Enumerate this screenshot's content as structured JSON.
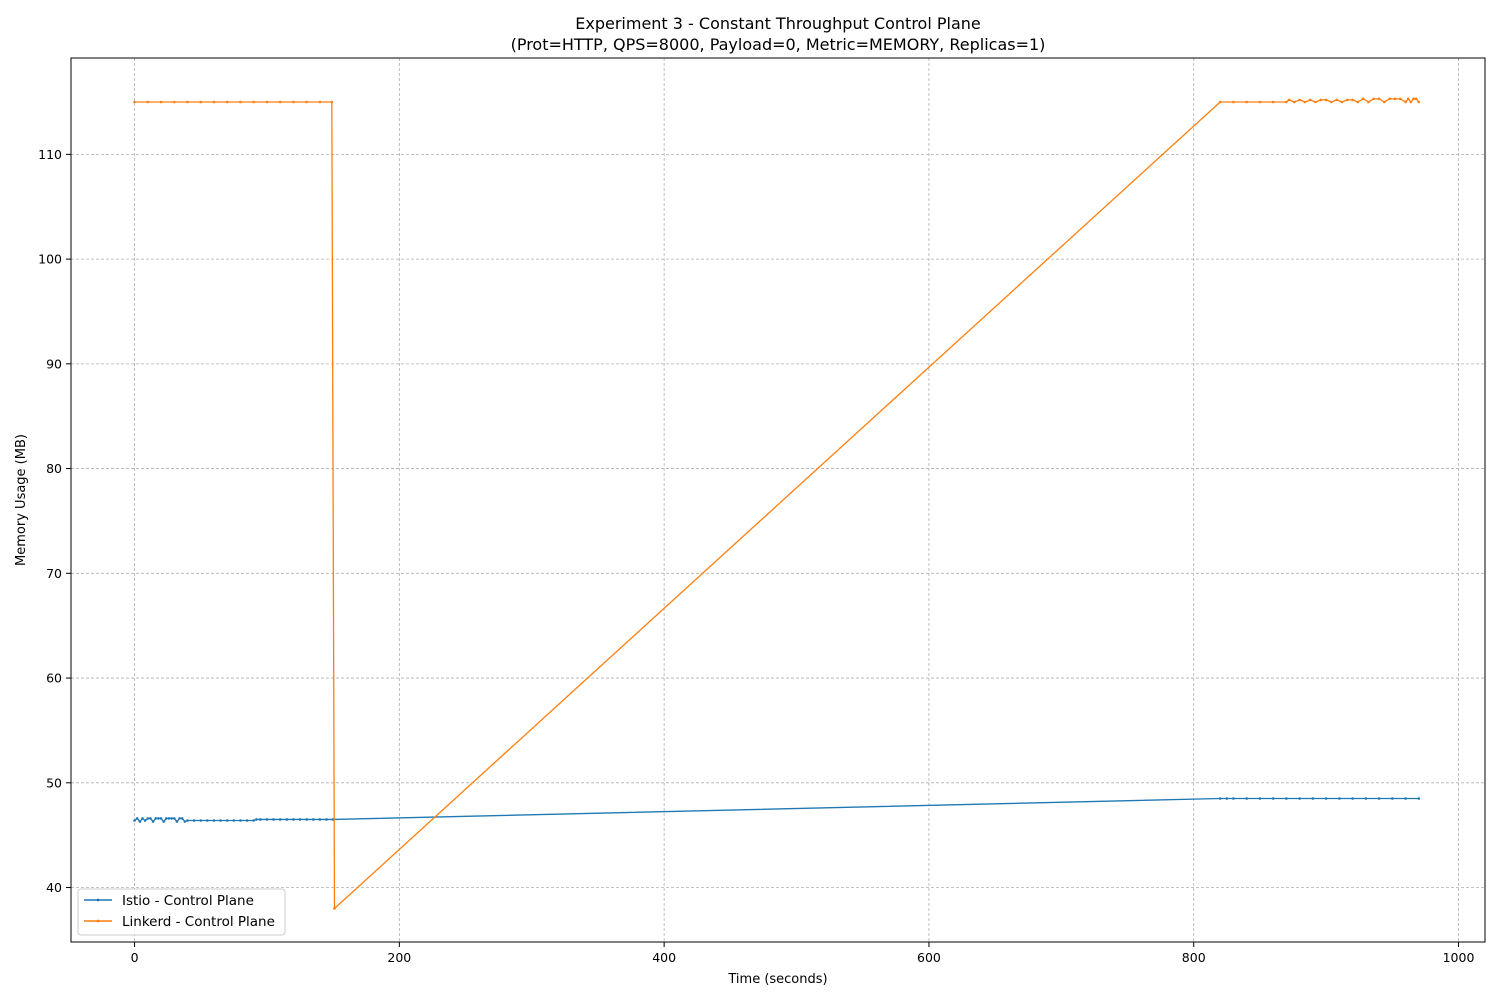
{
  "chart_data": {
    "type": "line",
    "title": "Experiment 3 - Constant Throughput Control Plane",
    "subtitle": "(Prot=HTTP, QPS=8000, Payload=0, Metric=MEMORY, Replicas=1)",
    "xlabel": "Time (seconds)",
    "ylabel": "Memory Usage (MB)",
    "xlim": [
      -48,
      1020
    ],
    "ylim": [
      34.8,
      119.2
    ],
    "xticks": [
      0,
      200,
      400,
      600,
      800,
      1000
    ],
    "yticks": [
      40,
      50,
      60,
      70,
      80,
      90,
      100,
      110
    ],
    "grid": true,
    "legend_position": "lower-left",
    "series": [
      {
        "name": "Istio - Control Plane",
        "color": "#1f77b4",
        "x": [
          0,
          2,
          4,
          6,
          8,
          10,
          12,
          14,
          16,
          18,
          20,
          22,
          24,
          26,
          28,
          30,
          32,
          34,
          36,
          38,
          40,
          45,
          50,
          55,
          60,
          65,
          70,
          75,
          80,
          85,
          90,
          92,
          95,
          100,
          105,
          110,
          115,
          120,
          125,
          130,
          135,
          140,
          145,
          150,
          820,
          825,
          830,
          840,
          850,
          860,
          870,
          880,
          890,
          900,
          910,
          920,
          930,
          940,
          950,
          960,
          970
        ],
        "y": [
          46.4,
          46.6,
          46.3,
          46.6,
          46.4,
          46.6,
          46.6,
          46.3,
          46.6,
          46.6,
          46.6,
          46.3,
          46.6,
          46.6,
          46.6,
          46.6,
          46.3,
          46.6,
          46.6,
          46.3,
          46.4,
          46.4,
          46.4,
          46.4,
          46.4,
          46.4,
          46.4,
          46.4,
          46.4,
          46.4,
          46.4,
          46.5,
          46.5,
          46.5,
          46.5,
          46.5,
          46.5,
          46.5,
          46.5,
          46.5,
          46.5,
          46.5,
          46.5,
          46.5,
          48.5,
          48.5,
          48.5,
          48.5,
          48.5,
          48.5,
          48.5,
          48.5,
          48.5,
          48.5,
          48.5,
          48.5,
          48.5,
          48.5,
          48.5,
          48.5,
          48.5
        ]
      },
      {
        "name": "Linkerd - Control Plane",
        "color": "#ff7f0e",
        "x": [
          0,
          10,
          20,
          30,
          40,
          50,
          60,
          70,
          80,
          90,
          100,
          110,
          120,
          130,
          140,
          149,
          151,
          820,
          830,
          840,
          850,
          860,
          870,
          872,
          876,
          880,
          884,
          888,
          892,
          896,
          900,
          904,
          908,
          912,
          916,
          920,
          924,
          928,
          932,
          936,
          940,
          944,
          948,
          952,
          956,
          960,
          962,
          964,
          966,
          968,
          970
        ],
        "y": [
          115.0,
          115.0,
          115.0,
          115.0,
          115.0,
          115.0,
          115.0,
          115.0,
          115.0,
          115.0,
          115.0,
          115.0,
          115.0,
          115.0,
          115.0,
          115.0,
          38.0,
          115.0,
          115.0,
          115.0,
          115.0,
          115.0,
          115.0,
          115.2,
          115.0,
          115.2,
          115.0,
          115.2,
          115.0,
          115.2,
          115.2,
          115.0,
          115.2,
          115.0,
          115.2,
          115.2,
          115.0,
          115.3,
          115.0,
          115.3,
          115.3,
          115.0,
          115.3,
          115.3,
          115.3,
          115.0,
          115.3,
          115.0,
          115.3,
          115.3,
          115.0
        ]
      }
    ]
  }
}
